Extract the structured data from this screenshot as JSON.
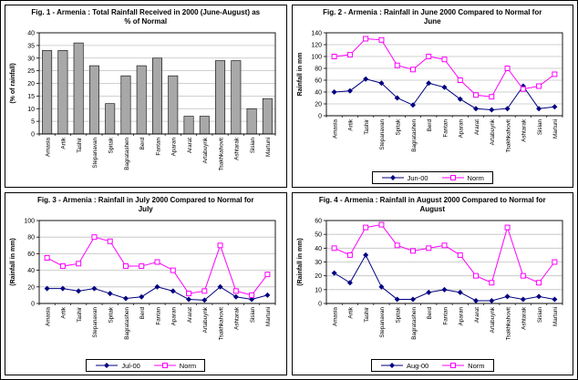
{
  "colors": {
    "series1": "#000080",
    "series2": "#ff00ff",
    "bar_fill": "#a8a8a8",
    "grid": "#c0c0c0"
  },
  "chart_data": [
    {
      "figure": "Fig. 1",
      "type": "bar",
      "title": "Fig. 1 - Armenia : Total Rainfall Received in 2000 (June-August) as % of Normal",
      "ylabel": "(% of rainfall)",
      "ylim": [
        0,
        40
      ],
      "ytick": 5,
      "grid": true,
      "categories": [
        "Amasia",
        "Artik",
        "Tashir",
        "Stepanavan",
        "Spitak",
        "Bagratashen",
        "Berd",
        "Fantan",
        "Aparan",
        "Ararat",
        "Artabuynk",
        "Tsakhkahovit",
        "Ashtarak",
        "Sisian",
        "Martuni"
      ],
      "values": [
        33,
        33,
        36,
        27,
        12,
        23,
        27,
        30,
        23,
        7,
        7,
        29,
        29,
        10,
        14
      ]
    },
    {
      "figure": "Fig. 2",
      "type": "line",
      "title": "Fig. 2 - Armenia : Rainfall in June 2000 Compared to Normal for June",
      "ylabel": "Rainfall in mm",
      "ylim": [
        0,
        140
      ],
      "ytick": 20,
      "grid": true,
      "legend_position": "bottom",
      "categories": [
        "Amasia",
        "Artik",
        "Tashir",
        "Stepanavan",
        "Spitak",
        "Bagratashen",
        "Berd",
        "Fantan",
        "Aparan",
        "Ararat",
        "Artabuynk",
        "Tsakhkahovit",
        "Ashtarak",
        "Sisian",
        "Martuni"
      ],
      "series": [
        {
          "name": "Jun-00",
          "marker": "diamond",
          "values": [
            40,
            42,
            62,
            55,
            30,
            18,
            55,
            48,
            28,
            12,
            10,
            12,
            50,
            12,
            15
          ]
        },
        {
          "name": "Norm",
          "marker": "square",
          "values": [
            100,
            103,
            130,
            128,
            85,
            78,
            100,
            95,
            60,
            35,
            32,
            80,
            45,
            50,
            70
          ]
        }
      ]
    },
    {
      "figure": "Fig. 3",
      "type": "line",
      "title": "Fig. 3 - Armenia : Rainfall in July 2000 Compared to Normal for July",
      "ylabel": "(Rainfall in mm)",
      "ylim": [
        0,
        100
      ],
      "ytick": 20,
      "grid": true,
      "legend_position": "bottom",
      "categories": [
        "Amasia",
        "Artik",
        "Tashir",
        "Stepanavan",
        "Spitak",
        "Bagratashen",
        "Berd",
        "Fantan",
        "Aparan",
        "Ararat",
        "Artabuynk",
        "Tsakhkahovit",
        "Ashtarak",
        "Sisian",
        "Martuni"
      ],
      "series": [
        {
          "name": "Jul-00",
          "marker": "diamond",
          "values": [
            18,
            18,
            15,
            18,
            12,
            6,
            8,
            20,
            15,
            5,
            4,
            20,
            8,
            5,
            10
          ]
        },
        {
          "name": "Norm",
          "marker": "square",
          "values": [
            55,
            45,
            48,
            80,
            75,
            45,
            45,
            50,
            40,
            12,
            15,
            70,
            15,
            10,
            35
          ]
        }
      ]
    },
    {
      "figure": "Fig. 4",
      "type": "line",
      "title": "Fig. 4 - Armenia : Rainfall in August 2000 Compared to Normal for August",
      "ylabel": "(Rainfall in mm)",
      "ylim": [
        0,
        60
      ],
      "ytick": 10,
      "grid": true,
      "legend_position": "bottom",
      "categories": [
        "Amasia",
        "Artik",
        "Tashir",
        "Stepanavan",
        "Spitak",
        "Bagratashen",
        "Berd",
        "Fantan",
        "Aparan",
        "Ararat",
        "Artabuynk",
        "Tsakhkahovit",
        "Ashtarak",
        "Sisian",
        "Martuni"
      ],
      "series": [
        {
          "name": "Aug-00",
          "marker": "diamond",
          "values": [
            22,
            15,
            35,
            12,
            3,
            3,
            8,
            10,
            8,
            2,
            2,
            5,
            3,
            5,
            3
          ]
        },
        {
          "name": "Norm",
          "marker": "square",
          "values": [
            40,
            35,
            55,
            57,
            42,
            38,
            40,
            42,
            35,
            20,
            15,
            55,
            20,
            15,
            30
          ]
        }
      ]
    }
  ]
}
